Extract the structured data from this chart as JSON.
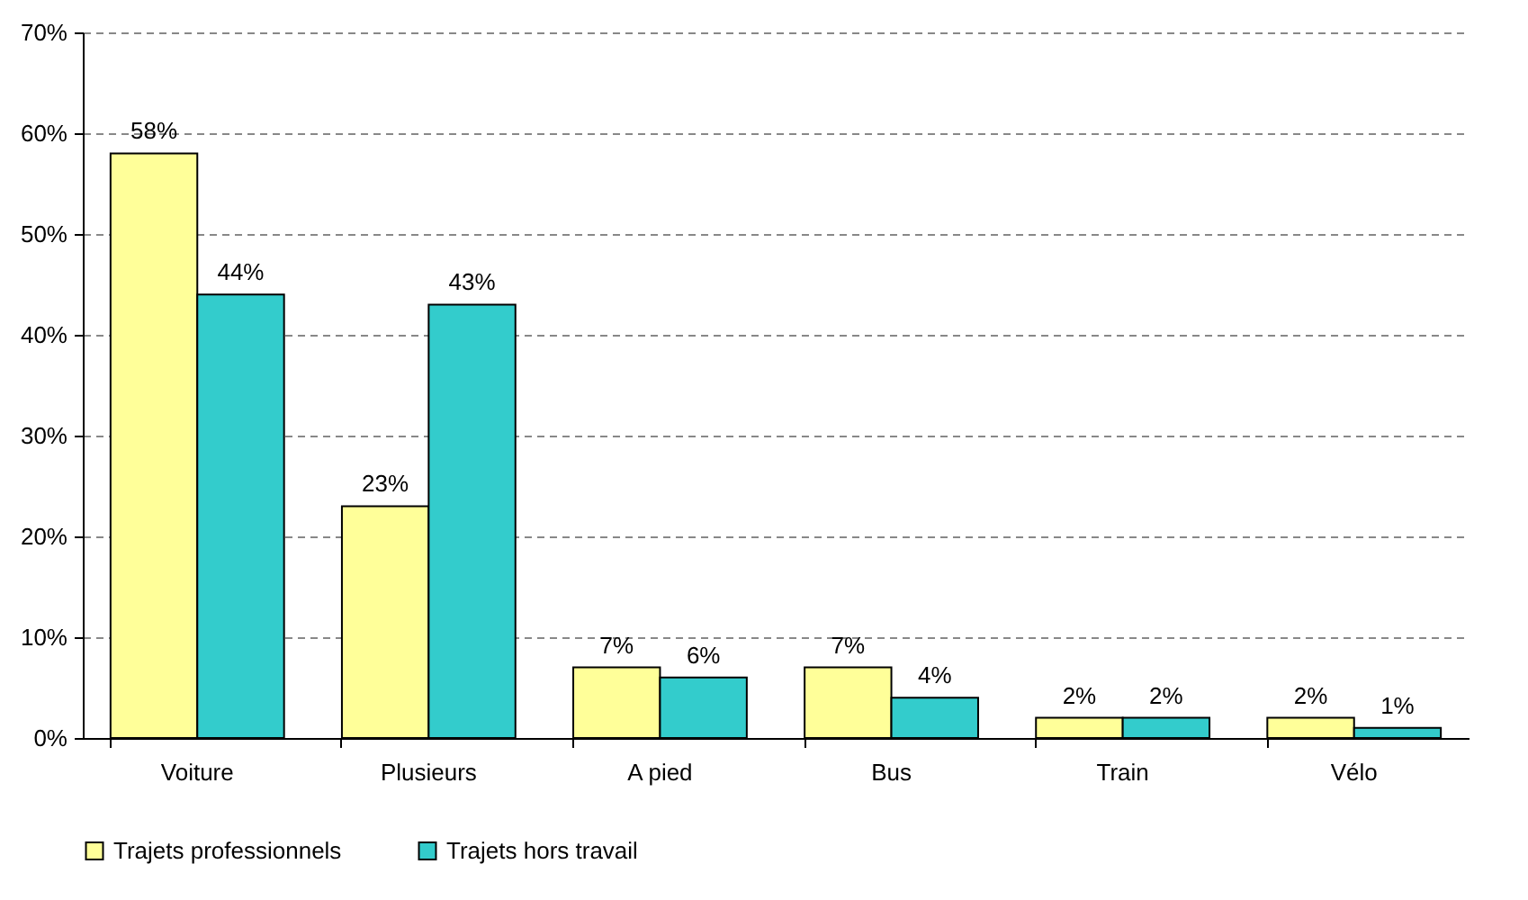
{
  "chart_data": {
    "type": "bar",
    "categories": [
      "Voiture",
      "Plusieurs",
      "A pied",
      "Bus",
      "Train",
      "Vélo"
    ],
    "series": [
      {
        "name": "Trajets professionnels",
        "color": "#ffff99",
        "values": [
          58,
          23,
          7,
          7,
          2,
          2
        ],
        "value_labels": [
          "58%",
          "23%",
          "7%",
          "7%",
          "2%",
          "2%"
        ]
      },
      {
        "name": "Trajets hors travail",
        "color": "#33cccc",
        "values": [
          44,
          43,
          6,
          4,
          2,
          1
        ],
        "value_labels": [
          "44%",
          "43%",
          "6%",
          "4%",
          "2%",
          "1%"
        ]
      }
    ],
    "ylim": [
      0,
      70
    ],
    "yticks": [
      {
        "value": 0,
        "label": "0%"
      },
      {
        "value": 10,
        "label": "10%"
      },
      {
        "value": 20,
        "label": "20%"
      },
      {
        "value": 30,
        "label": "30%"
      },
      {
        "value": 40,
        "label": "40%"
      },
      {
        "value": 50,
        "label": "50%"
      },
      {
        "value": 60,
        "label": "60%"
      },
      {
        "value": 70,
        "label": "70%"
      }
    ],
    "grid": "y",
    "legend": "bottom"
  }
}
